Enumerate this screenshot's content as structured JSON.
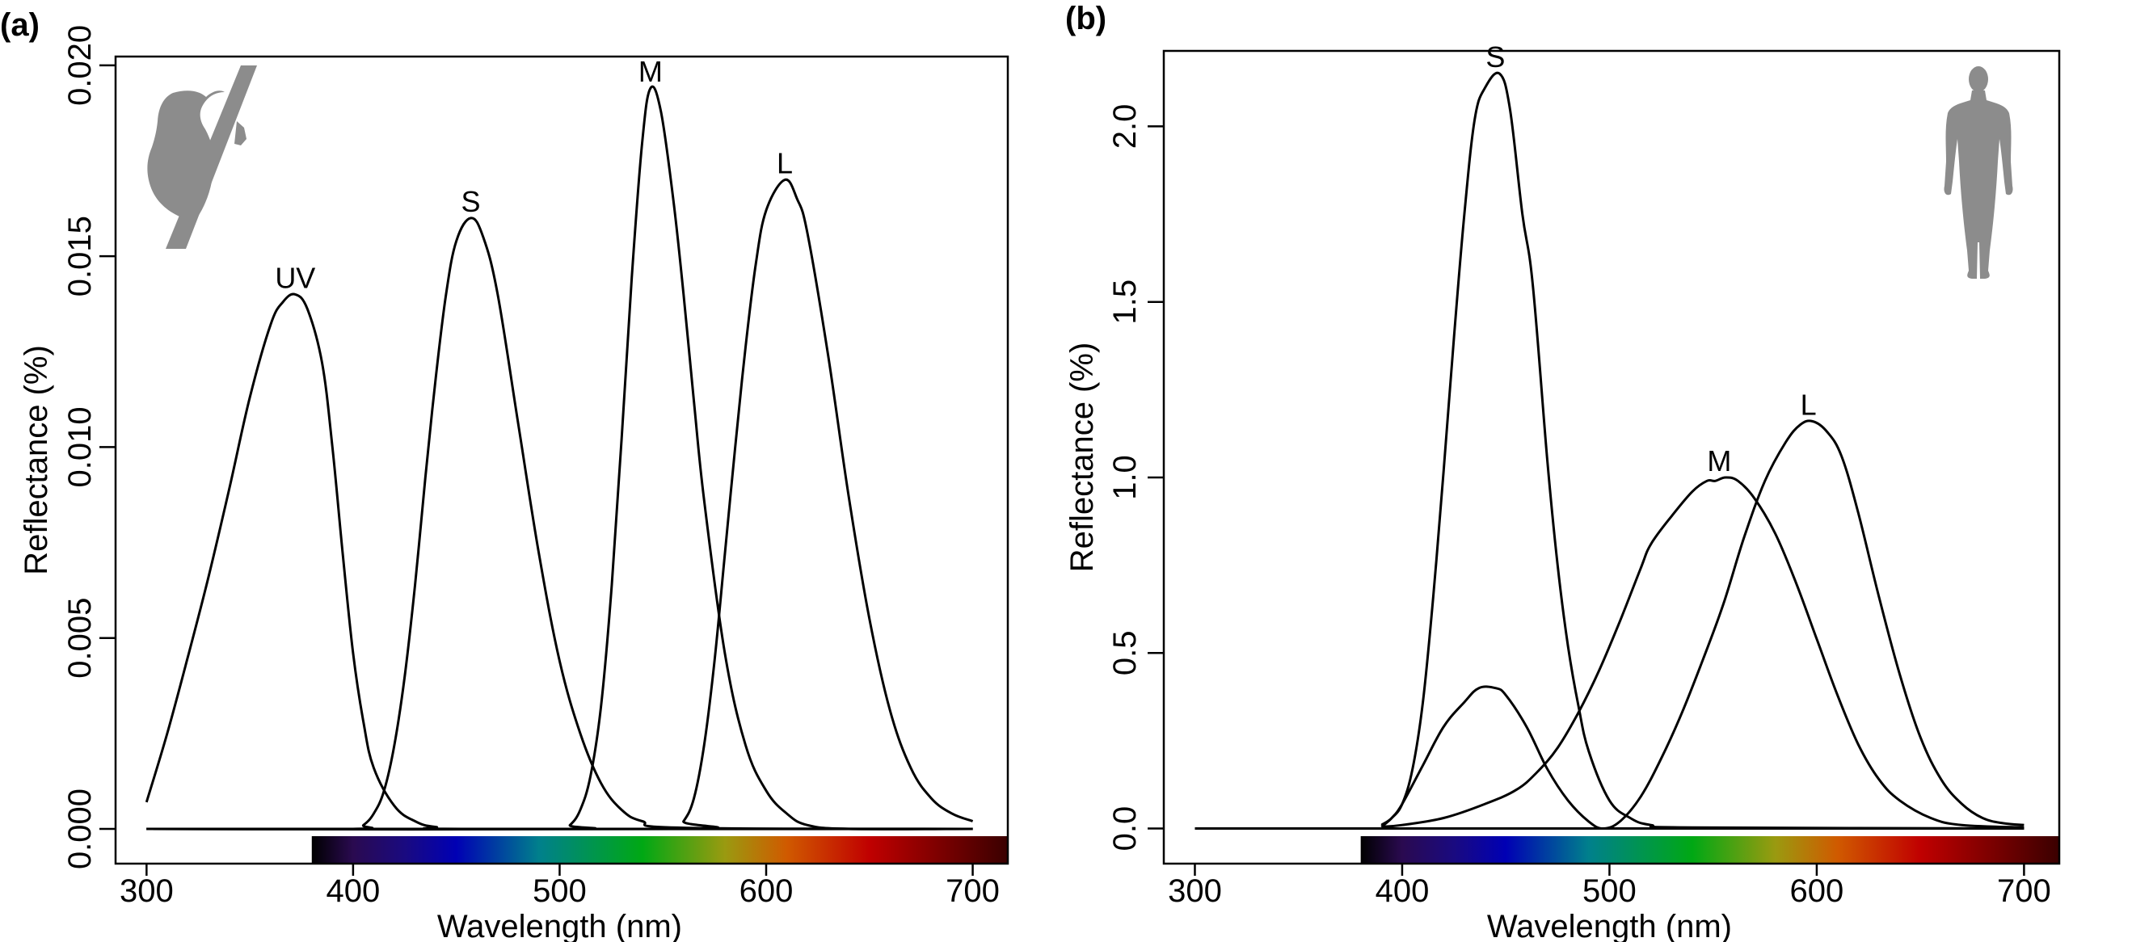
{
  "chart_data": [
    {
      "type": "line",
      "panel_label": "(a)",
      "icon": "bird-silhouette-icon",
      "xlabel": "Wavelength (nm)",
      "ylabel": "Reflectance (%)",
      "xlim": [
        285,
        717
      ],
      "ylim": [
        -0.00091,
        0.02023
      ],
      "xticks": [
        300,
        400,
        500,
        600,
        700
      ],
      "xtick_labels": [
        "300",
        "400",
        "500",
        "600",
        "700"
      ],
      "yticks": [
        0,
        0.005,
        0.01,
        0.015,
        0.02
      ],
      "ytick_labels": [
        "0.000",
        "0.005",
        "0.010",
        "0.015",
        "0.020"
      ],
      "grid": false,
      "spectrum_bar": {
        "from_nm": 380
      },
      "series": [
        {
          "name": "baseline",
          "label": "",
          "points": [
            [
              300,
              0
            ],
            [
              700,
              0
            ]
          ]
        },
        {
          "name": "UV",
          "label": "UV",
          "label_at": [
            372,
            0.014
          ],
          "points": [
            [
              300,
              0.0007
            ],
            [
              310,
              0.0025
            ],
            [
              320,
              0.0045
            ],
            [
              330,
              0.0066
            ],
            [
              340,
              0.0089
            ],
            [
              350,
              0.0113
            ],
            [
              360,
              0.0132
            ],
            [
              366,
              0.0138
            ],
            [
              372,
              0.014
            ],
            [
              378,
              0.0136
            ],
            [
              385,
              0.0122
            ],
            [
              390,
              0.01
            ],
            [
              395,
              0.0072
            ],
            [
              400,
              0.0046
            ],
            [
              405,
              0.0028
            ],
            [
              410,
              0.0016
            ],
            [
              420,
              0.0006
            ],
            [
              430,
              0.0002
            ],
            [
              440,
              5e-05
            ],
            [
              460,
              0
            ],
            [
              700,
              0
            ]
          ]
        },
        {
          "name": "S",
          "label": "S",
          "label_at": [
            457,
            0.016
          ],
          "points": [
            [
              300,
              0
            ],
            [
              400,
              0
            ],
            [
              405,
              0.0001
            ],
            [
              410,
              0.0004
            ],
            [
              415,
              0.001
            ],
            [
              420,
              0.0022
            ],
            [
              425,
              0.004
            ],
            [
              430,
              0.0064
            ],
            [
              435,
              0.0092
            ],
            [
              440,
              0.0118
            ],
            [
              445,
              0.014
            ],
            [
              450,
              0.0154
            ],
            [
              457,
              0.016
            ],
            [
              463,
              0.0155
            ],
            [
              470,
              0.014
            ],
            [
              480,
              0.0106
            ],
            [
              490,
              0.0072
            ],
            [
              500,
              0.0044
            ],
            [
              510,
              0.0025
            ],
            [
              520,
              0.0012
            ],
            [
              530,
              0.0005
            ],
            [
              540,
              0.0002
            ],
            [
              560,
              3e-05
            ],
            [
              700,
              0
            ]
          ]
        },
        {
          "name": "M",
          "label": "M",
          "label_at": [
            544,
            0.0194
          ],
          "points": [
            [
              300,
              0
            ],
            [
              500,
              0
            ],
            [
              505,
              0.0001
            ],
            [
              510,
              0.0005
            ],
            [
              515,
              0.0014
            ],
            [
              520,
              0.0032
            ],
            [
              525,
              0.0062
            ],
            [
              530,
              0.0102
            ],
            [
              535,
              0.0145
            ],
            [
              540,
              0.018
            ],
            [
              544,
              0.0194
            ],
            [
              549,
              0.0188
            ],
            [
              555,
              0.0165
            ],
            [
              560,
              0.014
            ],
            [
              565,
              0.0112
            ],
            [
              570,
              0.0086
            ],
            [
              580,
              0.0046
            ],
            [
              590,
              0.0022
            ],
            [
              600,
              0.001
            ],
            [
              610,
              0.0004
            ],
            [
              620,
              0.0001
            ],
            [
              640,
              0
            ],
            [
              700,
              0
            ]
          ]
        },
        {
          "name": "L",
          "label": "L",
          "label_at": [
            609,
            0.017
          ],
          "points": [
            [
              300,
              0
            ],
            [
              555,
              0
            ],
            [
              560,
              0.0002
            ],
            [
              565,
              0.0008
            ],
            [
              570,
              0.0022
            ],
            [
              575,
              0.0044
            ],
            [
              580,
              0.0072
            ],
            [
              585,
              0.01
            ],
            [
              590,
              0.0126
            ],
            [
              595,
              0.0148
            ],
            [
              600,
              0.0162
            ],
            [
              609,
              0.017
            ],
            [
              615,
              0.0165
            ],
            [
              620,
              0.0156
            ],
            [
              630,
              0.0124
            ],
            [
              640,
              0.0087
            ],
            [
              650,
              0.0055
            ],
            [
              660,
              0.0031
            ],
            [
              670,
              0.0016
            ],
            [
              680,
              0.0008
            ],
            [
              690,
              0.0004
            ],
            [
              700,
              0.0002
            ]
          ]
        }
      ]
    },
    {
      "type": "line",
      "panel_label": "(b)",
      "icon": "human-silhouette-icon",
      "xlabel": "Wavelength (nm)",
      "ylabel": "Reflectance (%)",
      "xlim": [
        285,
        717
      ],
      "ylim": [
        -0.1,
        2.215
      ],
      "xticks": [
        300,
        400,
        500,
        600,
        700
      ],
      "xtick_labels": [
        "300",
        "400",
        "500",
        "600",
        "700"
      ],
      "yticks": [
        0,
        0.5,
        1.0,
        1.5,
        2.0
      ],
      "ytick_labels": [
        "0.0",
        "0.5",
        "1.0",
        "1.5",
        "2.0"
      ],
      "grid": false,
      "spectrum_bar": {
        "from_nm": 380
      },
      "series": [
        {
          "name": "baseline",
          "label": "",
          "points": [
            [
              300,
              0
            ],
            [
              700,
              0
            ]
          ]
        },
        {
          "name": "S",
          "label": "S",
          "label_at": [
            445,
            2.15
          ],
          "points": [
            [
              390,
              0.01
            ],
            [
              395,
              0.03
            ],
            [
              400,
              0.07
            ],
            [
              405,
              0.17
            ],
            [
              410,
              0.36
            ],
            [
              415,
              0.66
            ],
            [
              420,
              1.02
            ],
            [
              425,
              1.4
            ],
            [
              430,
              1.75
            ],
            [
              435,
              2.02
            ],
            [
              440,
              2.11
            ],
            [
              447,
              2.15
            ],
            [
              452,
              2.05
            ],
            [
              458,
              1.75
            ],
            [
              463,
              1.55
            ],
            [
              470,
              1.05
            ],
            [
              475,
              0.75
            ],
            [
              480,
              0.52
            ],
            [
              485,
              0.35
            ],
            [
              490,
              0.22
            ],
            [
              500,
              0.08
            ],
            [
              510,
              0.03
            ],
            [
              520,
              0.01
            ],
            [
              540,
              0.003
            ],
            [
              700,
              0.0
            ]
          ]
        },
        {
          "name": "M",
          "label": "M",
          "label_at": [
            553,
            1.0
          ],
          "points": [
            [
              390,
              0.005
            ],
            [
              400,
              0.01
            ],
            [
              420,
              0.03
            ],
            [
              440,
              0.07
            ],
            [
              455,
              0.11
            ],
            [
              465,
              0.16
            ],
            [
              475,
              0.23
            ],
            [
              485,
              0.33
            ],
            [
              495,
              0.45
            ],
            [
              505,
              0.59
            ],
            [
              515,
              0.74
            ],
            [
              520,
              0.81
            ],
            [
              530,
              0.89
            ],
            [
              540,
              0.96
            ],
            [
              547,
              0.99
            ],
            [
              551,
              0.99
            ],
            [
              556,
              1.0
            ],
            [
              562,
              0.99
            ],
            [
              570,
              0.94
            ],
            [
              580,
              0.84
            ],
            [
              590,
              0.7
            ],
            [
              600,
              0.54
            ],
            [
              610,
              0.38
            ],
            [
              620,
              0.24
            ],
            [
              630,
              0.14
            ],
            [
              640,
              0.08
            ],
            [
              655,
              0.03
            ],
            [
              670,
              0.01
            ],
            [
              700,
              0.003
            ]
          ]
        },
        {
          "name": "L",
          "label": "L",
          "label_at": [
            596,
            1.16
          ],
          "points": [
            [
              390,
              0.005
            ],
            [
              395,
              0.03
            ],
            [
              400,
              0.07
            ],
            [
              410,
              0.18
            ],
            [
              420,
              0.29
            ],
            [
              430,
              0.36
            ],
            [
              437,
              0.4
            ],
            [
              445,
              0.4
            ],
            [
              450,
              0.38
            ],
            [
              460,
              0.29
            ],
            [
              470,
              0.17
            ],
            [
              480,
              0.08
            ],
            [
              490,
              0.02
            ],
            [
              497,
              0.0
            ],
            [
              505,
              0.02
            ],
            [
              515,
              0.09
            ],
            [
              525,
              0.2
            ],
            [
              535,
              0.33
            ],
            [
              545,
              0.48
            ],
            [
              555,
              0.64
            ],
            [
              565,
              0.83
            ],
            [
              575,
              0.99
            ],
            [
              585,
              1.1
            ],
            [
              592,
              1.15
            ],
            [
              598,
              1.16
            ],
            [
              605,
              1.13
            ],
            [
              612,
              1.06
            ],
            [
              620,
              0.9
            ],
            [
              630,
              0.66
            ],
            [
              640,
              0.44
            ],
            [
              650,
              0.26
            ],
            [
              660,
              0.14
            ],
            [
              670,
              0.07
            ],
            [
              680,
              0.03
            ],
            [
              690,
              0.015
            ],
            [
              700,
              0.01
            ]
          ]
        }
      ]
    }
  ],
  "colors": {
    "curve": "#000000",
    "silhouette": "#8c8c8c",
    "spectrum": [
      {
        "nm": 380,
        "color": "#000000"
      },
      {
        "nm": 400,
        "color": "#2a0a50"
      },
      {
        "nm": 425,
        "color": "#1a0a80"
      },
      {
        "nm": 450,
        "color": "#0000b4"
      },
      {
        "nm": 490,
        "color": "#00808c"
      },
      {
        "nm": 540,
        "color": "#00a814"
      },
      {
        "nm": 580,
        "color": "#9a9a10"
      },
      {
        "nm": 610,
        "color": "#d05a00"
      },
      {
        "nm": 650,
        "color": "#c00000"
      },
      {
        "nm": 717,
        "color": "#3a0000"
      }
    ]
  }
}
